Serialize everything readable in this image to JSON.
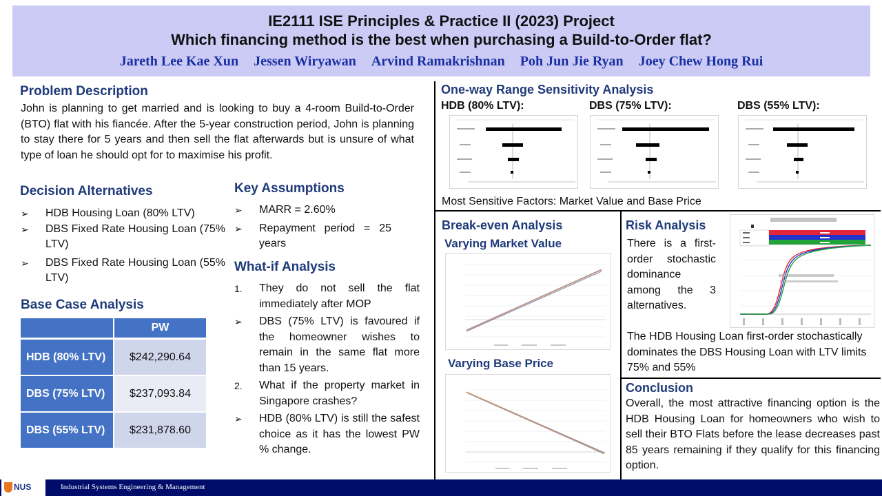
{
  "header": {
    "title": "IE2111 ISE Principles & Practice II (2023) Project",
    "subtitle": "Which financing method is the best when purchasing a Build-to-Order flat?",
    "authors": [
      "Jareth Lee Kae Xun",
      "Jessen Wiryawan",
      "Arvind Ramakrishnan",
      "Poh Jun Jie Ryan",
      "Joey Chew Hong Rui"
    ]
  },
  "problem": {
    "heading": "Problem Description",
    "text": "John is planning to get married and is looking to buy a 4-room Build-to-Order (BTO) flat with his fiancée. After the 5-year construction period, John is planning to stay there for 5 years and then sell the flat afterwards but is unsure of what type of loan he should opt for to maximise his profit."
  },
  "alternatives": {
    "heading": "Decision Alternatives",
    "bullet": "➢",
    "items": [
      "HDB Housing Loan (80% LTV)",
      "DBS Fixed Rate Housing Loan (75% LTV)",
      "DBS Fixed Rate Housing Loan (55% LTV)"
    ]
  },
  "base_case": {
    "heading": "Base Case Analysis",
    "column": "PW",
    "rows": [
      {
        "name": "HDB (80% LTV)",
        "value": "$242,290.64"
      },
      {
        "name": "DBS (75% LTV)",
        "value": "$237,093.84"
      },
      {
        "name": "DBS (55% LTV)",
        "value": "$231,878.60"
      }
    ]
  },
  "assumptions": {
    "heading": "Key Assumptions",
    "items": [
      "MARR = 2.60%",
      "Repayment period = 25 years"
    ]
  },
  "whatif": {
    "heading": "What-if Analysis",
    "q1_num": "1.",
    "q1": "They do not sell the flat immediately after MOP",
    "a1": "DBS (75% LTV) is favoured if the homeowner wishes to remain in the same flat more than 15 years.",
    "q2_num": "2.",
    "q2": "What if the property market in Singapore crashes?",
    "a2": "HDB (80% LTV) is still the safest choice as it has the lowest PW % change."
  },
  "sensitivity": {
    "heading": "One-way Range Sensitivity Analysis",
    "panels": [
      "HDB (80% LTV):",
      "DBS (75% LTV):",
      "DBS (55% LTV):"
    ],
    "footer": "Most Sensitive Factors: Market Value and Base Price"
  },
  "breakeven": {
    "heading": "Break-even Analysis",
    "market_heading": "Varying Market Value",
    "base_heading": "Varying Base Price"
  },
  "risk": {
    "heading": "Risk Analysis",
    "text1": "There is a first-order stochastic dominance among the 3 alternatives.",
    "text2": "The HDB Housing Loan first-order stochastically dominates the DBS Housing Loan with LTV limits 75% and 55%"
  },
  "conclusion": {
    "heading": "Conclusion",
    "text": "Overall, the most attractive financing option is the HDB Housing Loan for homeowners who wish to sell their BTO Flats before the lease decreases past 85 years remaining if they qualify for this financing option."
  },
  "footer": {
    "logo": "NUS",
    "dept": "Industrial Systems Engineering & Management"
  },
  "colors": {
    "header_bg": "#cbcbf6",
    "heading": "#1f3a7a",
    "authors": "#1a2fa0",
    "table_header": "#4472c4",
    "footer": "#000c6a"
  }
}
